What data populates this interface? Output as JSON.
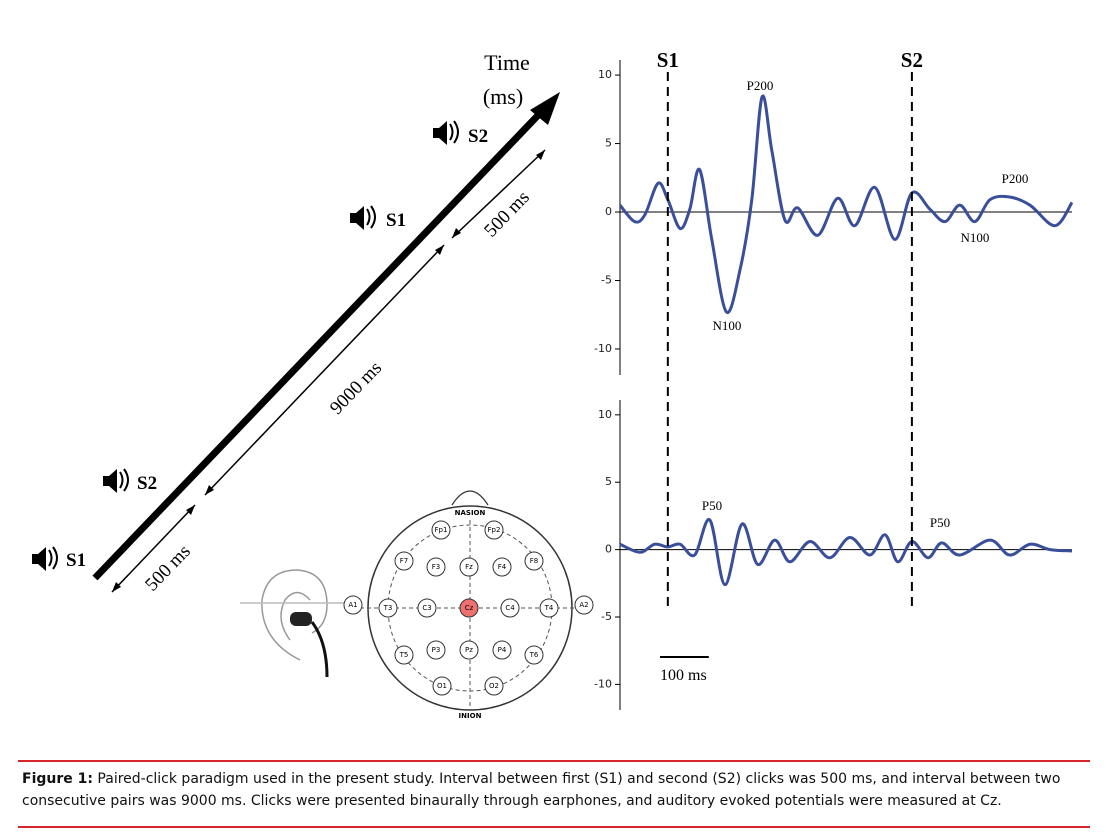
{
  "diagram": {
    "time_label": [
      "Time",
      "(ms)"
    ],
    "stimuli": [
      "S1",
      "S2",
      "S1",
      "S2"
    ],
    "intervals": [
      "500 ms",
      "9000 ms",
      "500 ms"
    ]
  },
  "head": {
    "nasion": "NASION",
    "inion": "INION",
    "electrodes": [
      "Fp1",
      "Fp2",
      "F7",
      "F3",
      "Fz",
      "F4",
      "F8",
      "A1",
      "T3",
      "C3",
      "Cz",
      "C4",
      "T4",
      "A2",
      "T5",
      "P3",
      "Pz",
      "P4",
      "T6",
      "O1",
      "O2"
    ]
  },
  "stimulus_markers": [
    "S1",
    "S2"
  ],
  "scale_bar": {
    "value": 100,
    "label": "100 ms"
  },
  "chart_data": [
    {
      "type": "line",
      "x": [
        -98,
        -68,
        -47,
        -20,
        0,
        25,
        45,
        65,
        90,
        120,
        148,
        172,
        193,
        213,
        240,
        266,
        307,
        348,
        383,
        424,
        465,
        500,
        537,
        568,
        598,
        629,
        660,
        700,
        742,
        793,
        828
      ],
      "values": [
        0.5,
        -0.7,
        -0.2,
        2.1,
        0.9,
        -1.2,
        0.2,
        3.1,
        -2,
        -7.3,
        -4.2,
        0.9,
        8.4,
        4.5,
        -0.6,
        0.3,
        -1.7,
        1,
        -1,
        1.8,
        -2,
        1.4,
        0.2,
        -0.7,
        0.5,
        -0.7,
        0.9,
        1.1,
        0.5,
        -1,
        0.7
      ],
      "color": "#3a4f9a",
      "xlim": [
        -98,
        828
      ],
      "ylim": [
        -11.9,
        11.1
      ],
      "yticks": [
        10,
        5,
        0,
        -5,
        -10
      ],
      "marker_x": [
        0,
        500
      ],
      "annotations": [
        "P200",
        "N100",
        "P200",
        "N100"
      ]
    },
    {
      "type": "line",
      "x": [
        -98,
        -57,
        -27,
        0,
        25,
        55,
        86,
        117,
        152,
        184,
        219,
        250,
        291,
        332,
        373,
        414,
        445,
        471,
        500,
        533,
        561,
        598,
        660,
        700,
        742,
        783,
        828
      ],
      "values": [
        0.4,
        -0.2,
        0.4,
        0.2,
        0.4,
        -0.4,
        2.2,
        -2.6,
        1.9,
        -1.1,
        0.7,
        -0.9,
        0.6,
        -0.6,
        0.9,
        -0.4,
        1.1,
        -0.9,
        0.6,
        -0.6,
        0.5,
        -0.4,
        0.7,
        -0.4,
        0.4,
        0,
        -0.1
      ],
      "color": "#3a4f9a",
      "xlim": [
        -98,
        828
      ],
      "ylim": [
        -11.9,
        11.1
      ],
      "yticks": [
        10,
        5,
        0,
        -5,
        -10
      ],
      "marker_x": [
        0,
        500
      ],
      "annotations": [
        "P50",
        "P50"
      ]
    }
  ],
  "caption": {
    "label": "Figure 1:",
    "text": "Paired-click paradigm used in the present study. Interval between first (S1) and second (S2) clicks was 500 ms, and interval between two consecutive pairs was 9000 ms. Clicks were presented binaurally through earphones, and auditory evoked potentials were measured at Cz."
  }
}
